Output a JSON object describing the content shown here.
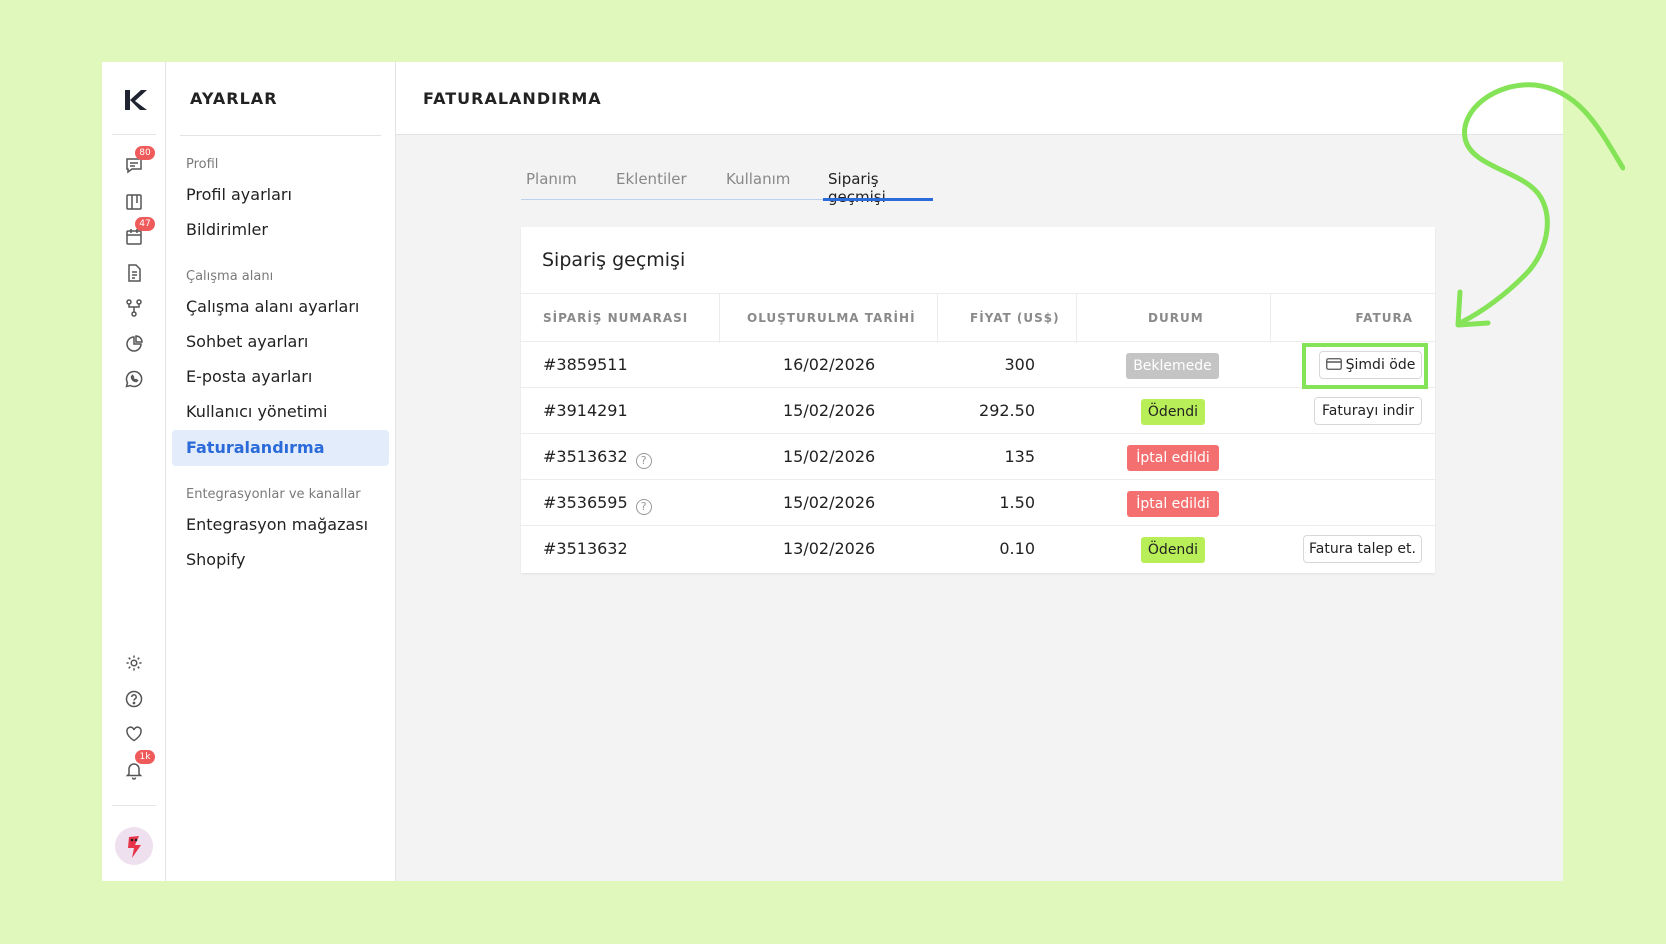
{
  "rail": {
    "badges": {
      "messages": "80",
      "calendar": "47",
      "notifications": "1k"
    }
  },
  "settings": {
    "title": "AYARLAR",
    "groups": [
      {
        "label": "Profil",
        "items": [
          "Profil ayarları",
          "Bildirimler"
        ]
      },
      {
        "label": "Çalışma alanı",
        "items": [
          "Çalışma alanı ayarları",
          "Sohbet ayarları",
          "E-posta ayarları",
          "Kullanıcı yönetimi",
          "Faturalandırma"
        ]
      },
      {
        "label": "Entegrasyonlar ve kanallar",
        "items": [
          "Entegrasyon mağazası",
          "Shopify"
        ]
      }
    ]
  },
  "main": {
    "title": "FATURALANDIRMA",
    "tabs": [
      "Planım",
      "Eklentiler",
      "Kullanım",
      "Sipariş geçmişi"
    ],
    "card_title": "Sipariş geçmişi",
    "columns": [
      "SİPARİŞ NUMARASI",
      "OLUŞTURULMA TARİHİ",
      "FİYAT (US$)",
      "DURUM",
      "FATURA"
    ],
    "rows": [
      {
        "order": "#3859511",
        "date": "16/02/2026",
        "price": "300",
        "status": "Beklemede",
        "invoice": "Şimdi öde"
      },
      {
        "order": "#3914291",
        "date": "15/02/2026",
        "price": "292.50",
        "status": "Ödendi",
        "invoice": "Faturayı indir"
      },
      {
        "order": "#3513632",
        "date": "15/02/2026",
        "price": "135",
        "status": "İptal edildi",
        "invoice": ""
      },
      {
        "order": "#3536595",
        "date": "15/02/2026",
        "price": "1.50",
        "status": "İptal edildi",
        "invoice": ""
      },
      {
        "order": "#3513632",
        "date": "13/02/2026",
        "price": "0.10",
        "status": "Ödendi",
        "invoice": "Fatura talep et."
      }
    ]
  },
  "colors": {
    "background": "#e1f8bc",
    "accent": "#2b6bd9",
    "paid": "#b8ee57",
    "cancelled": "#f47070",
    "pending": "#c4c4c4",
    "highlight": "#84e356"
  }
}
